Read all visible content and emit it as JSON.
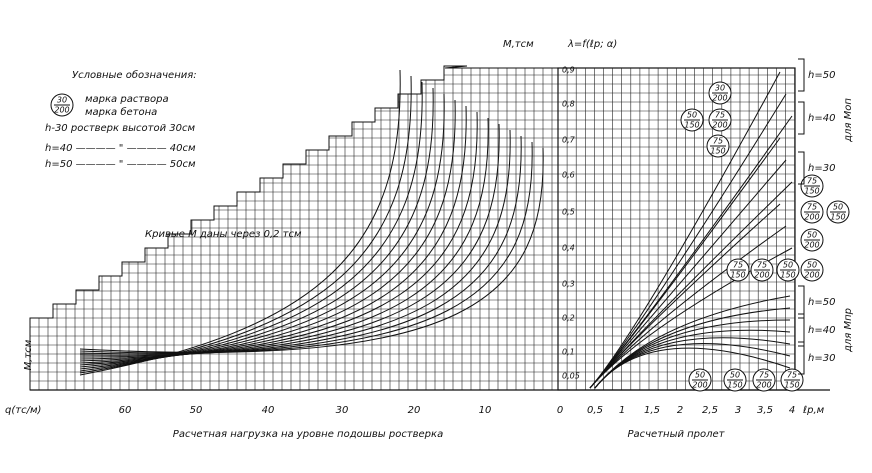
{
  "legend": {
    "title": "Условные обозначения:",
    "sample_mark": {
      "top": "30",
      "bottom": "200"
    },
    "mortar_label": "марка раствора",
    "concrete_label": "марка бетона",
    "rows": [
      "h-30 ростверк высотой 30см",
      "h=40 ———— \" ———— 40см",
      "h=50 ———— \" ———— 50см"
    ]
  },
  "note": "Кривые М даны через 0,2 тсм",
  "moment_label": "М,тсм",
  "function_label": "λ=f(ℓр; α)",
  "left_moment_label": "М,тсм",
  "y_ticks": [
    "0,9",
    "0,8",
    "0,7",
    "0,6",
    "0,5",
    "0,4",
    "0,3",
    "0,2",
    "0,1",
    "0,05"
  ],
  "load_axis": {
    "label": "q(тс/м)",
    "ticks": [
      "60",
      "50",
      "40",
      "30",
      "20",
      "10"
    ],
    "title": "Расчетная нагрузка на уровне подошвы ростверка"
  },
  "span_axis": {
    "ticks": [
      "0",
      "0,5",
      "1",
      "1,5",
      "2",
      "2,5",
      "3",
      "3,5",
      "4"
    ],
    "label": "ℓр,м",
    "title": "Расчетный пролет"
  },
  "marks": [
    {
      "top": "30",
      "bottom": "200"
    },
    {
      "top": "50",
      "bottom": "150"
    },
    {
      "top": "75",
      "bottom": "200"
    },
    {
      "top": "75",
      "bottom": "150"
    },
    {
      "top": "75",
      "bottom": "150"
    },
    {
      "top": "75",
      "bottom": "200"
    },
    {
      "top": "50",
      "bottom": "150"
    },
    {
      "top": "50",
      "bottom": "200"
    },
    {
      "top": "75",
      "bottom": "150"
    },
    {
      "top": "75",
      "bottom": "200"
    },
    {
      "top": "50",
      "bottom": "150"
    },
    {
      "top": "50",
      "bottom": "200"
    },
    {
      "top": "50",
      "bottom": "200"
    },
    {
      "top": "50",
      "bottom": "150"
    },
    {
      "top": "75",
      "bottom": "200"
    },
    {
      "top": "75",
      "bottom": "150"
    }
  ],
  "heights": [
    "h=50",
    "h=40",
    "h=30",
    "h=50",
    "h=40",
    "h=30"
  ],
  "groups": [
    "для Моп",
    "для Мпр"
  ]
}
